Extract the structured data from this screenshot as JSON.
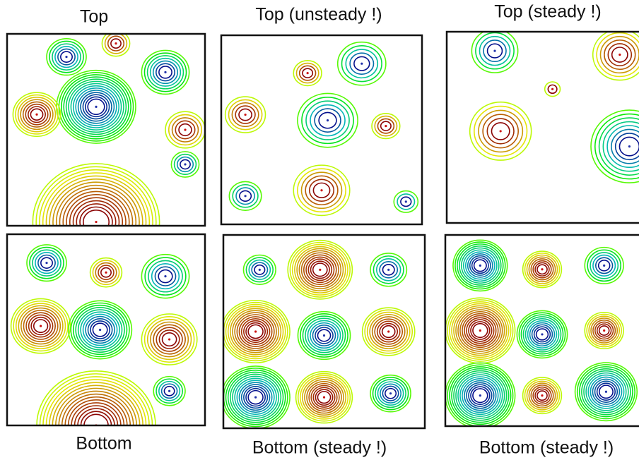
{
  "panels": [
    {
      "title": "Top"
    },
    {
      "title": "Top (unsteady !)"
    },
    {
      "title": "Top (steady !)"
    },
    {
      "title": "Bottom"
    },
    {
      "title": "Bottom (steady !)"
    },
    {
      "title": "Bottom (steady !)"
    }
  ]
}
